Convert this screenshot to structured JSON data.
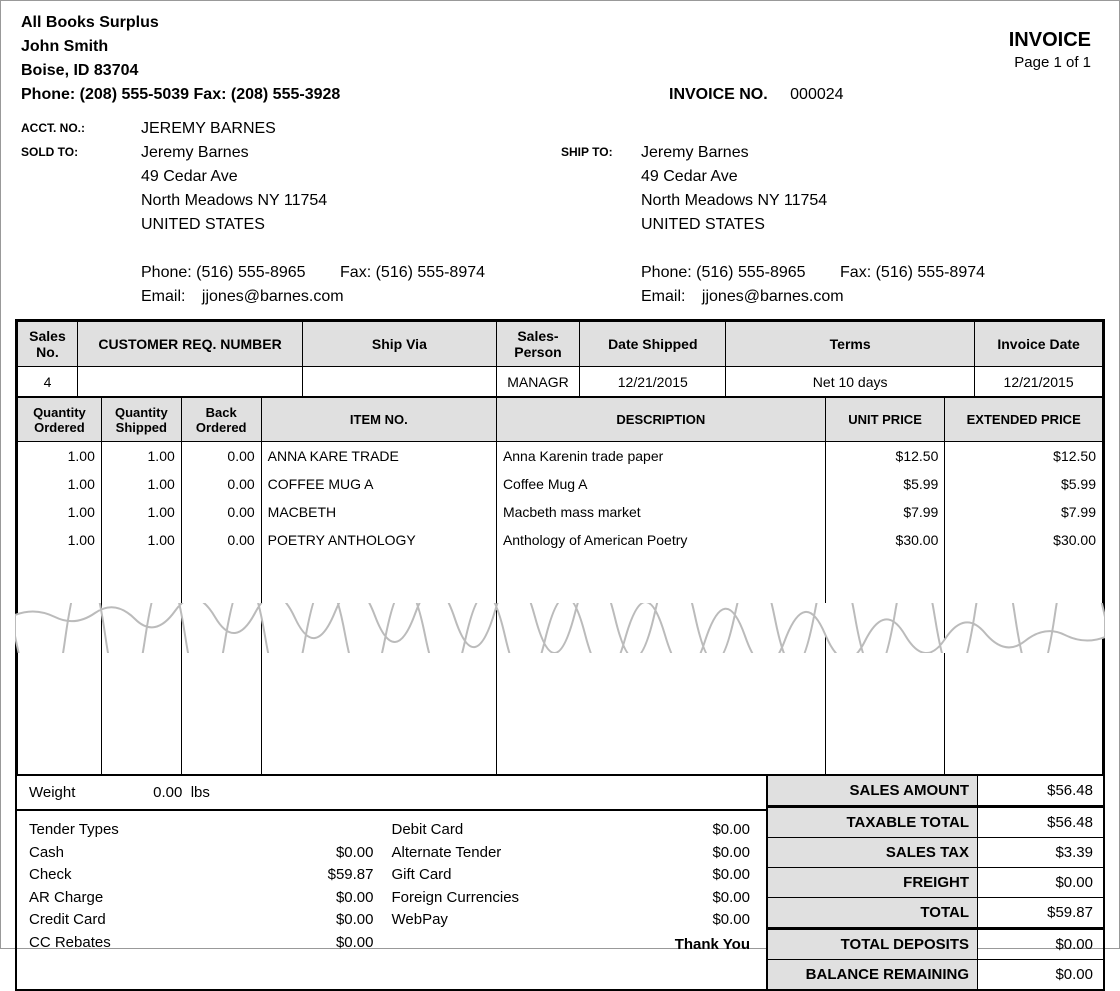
{
  "company": {
    "name": "All Books Surplus",
    "contact": "John Smith",
    "city_line": "Boise, ID 83704",
    "phone_fax": "Phone: (208) 555-5039  Fax: (208) 555-3928"
  },
  "doc": {
    "title": "INVOICE",
    "page": "Page 1 of 1",
    "invoice_no_label": "INVOICE NO.",
    "invoice_no": "000024"
  },
  "acct": {
    "label": "ACCT. NO.:",
    "value": "JEREMY BARNES"
  },
  "sold_to": {
    "label": "SOLD TO:",
    "name": "Jeremy Barnes",
    "addr1": "49 Cedar Ave",
    "addr2": "North Meadows NY 11754",
    "country": "UNITED STATES",
    "phone": "Phone: (516) 555-8965",
    "fax": "Fax: (516) 555-8974",
    "email_label": "Email:",
    "email": "jjones@barnes.com"
  },
  "ship_to": {
    "label": "SHIP TO:",
    "name": "Jeremy Barnes",
    "addr1": "49 Cedar Ave",
    "addr2": "North Meadows NY 11754",
    "country": "UNITED STATES",
    "phone": "Phone: (516) 555-8965",
    "fax": "Fax: (516) 555-8974",
    "email_label": "Email:",
    "email": "jjones@barnes.com"
  },
  "hdr1": {
    "cols": [
      "Sales No.",
      "CUSTOMER REQ. NUMBER",
      "Ship Via",
      "Sales-Person",
      "Date Shipped",
      "Terms",
      "Invoice Date"
    ],
    "row": [
      "4",
      "",
      "",
      "MANAGR",
      "12/21/2015",
      "Net 10 days",
      "12/21/2015"
    ]
  },
  "hdr2": {
    "cols": [
      "Quantity Ordered",
      "Quantity Shipped",
      "Back Ordered",
      "ITEM NO.",
      "DESCRIPTION",
      "UNIT PRICE",
      "EXTENDED PRICE"
    ]
  },
  "items": [
    {
      "qo": "1.00",
      "qs": "1.00",
      "bo": "0.00",
      "item": "ANNA KARE TRADE",
      "desc": "Anna Karenin trade paper",
      "unit": "$12.50",
      "ext": "$12.50"
    },
    {
      "qo": "1.00",
      "qs": "1.00",
      "bo": "0.00",
      "item": "COFFEE MUG A",
      "desc": "Coffee Mug A",
      "unit": "$5.99",
      "ext": "$5.99"
    },
    {
      "qo": "1.00",
      "qs": "1.00",
      "bo": "0.00",
      "item": "MACBETH",
      "desc": "Macbeth mass market",
      "unit": "$7.99",
      "ext": "$7.99"
    },
    {
      "qo": "1.00",
      "qs": "1.00",
      "bo": "0.00",
      "item": "POETRY ANTHOLOGY",
      "desc": "Anthology of American Poetry",
      "unit": "$30.00",
      "ext": "$30.00"
    }
  ],
  "weight": {
    "label": "Weight",
    "value": "0.00",
    "unit": "lbs"
  },
  "tenders": {
    "col1": [
      {
        "l": "Tender Types",
        "v": ""
      },
      {
        "l": "Cash",
        "v": "$0.00"
      },
      {
        "l": "Check",
        "v": "$59.87"
      },
      {
        "l": "AR Charge",
        "v": "$0.00"
      },
      {
        "l": "Credit Card",
        "v": "$0.00"
      },
      {
        "l": "CC Rebates",
        "v": "$0.00"
      }
    ],
    "col2": [
      {
        "l": "Debit Card",
        "v": "$0.00"
      },
      {
        "l": "Alternate Tender",
        "v": "$0.00"
      },
      {
        "l": "Gift Card",
        "v": "$0.00"
      },
      {
        "l": "Foreign Currencies",
        "v": "$0.00"
      },
      {
        "l": "WebPay",
        "v": "$0.00"
      }
    ]
  },
  "thankyou": "Thank You",
  "totals": [
    {
      "l": "SALES AMOUNT",
      "v": "$56.48",
      "sep": false
    },
    {
      "l": "TAXABLE TOTAL",
      "v": "$56.48",
      "sep": true
    },
    {
      "l": "SALES TAX",
      "v": "$3.39",
      "sep": false
    },
    {
      "l": "FREIGHT",
      "v": "$0.00",
      "sep": false
    },
    {
      "l": "TOTAL",
      "v": "$59.87",
      "sep": false
    },
    {
      "l": "TOTAL DEPOSITS",
      "v": "$0.00",
      "sep": true
    },
    {
      "l": "BALANCE REMAINING",
      "v": "$0.00",
      "sep": false
    }
  ]
}
